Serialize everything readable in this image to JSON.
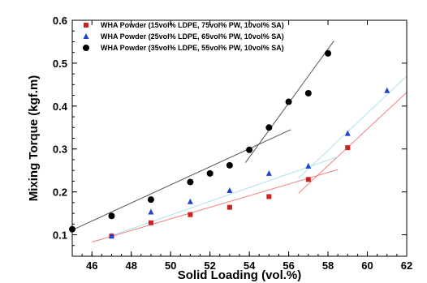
{
  "chart_data": {
    "type": "scatter",
    "title": "",
    "xlabel": "Solid Loading (vol.%)",
    "ylabel": "Mixing Torque (kgf.m)",
    "xlim": [
      45,
      62
    ],
    "ylim": [
      0.05,
      0.6
    ],
    "xticks": [
      "46",
      "48",
      "50",
      "52",
      "54",
      "56",
      "58",
      "60",
      "62"
    ],
    "yticks": [
      "0.1",
      "0.2",
      "0.3",
      "0.4",
      "0.5",
      "0.6"
    ],
    "legend_position": "top-left",
    "series": [
      {
        "name": "WHA Powder (15vol% LDPE, 75vol% PW, 10vol% SA)",
        "marker": "square",
        "color": "#cc2222",
        "line_color": "#f08080",
        "x": [
          47,
          49,
          51,
          53,
          55,
          57,
          59
        ],
        "y": [
          0.097,
          0.128,
          0.147,
          0.164,
          0.189,
          0.229,
          0.303
        ],
        "trendlines": [
          {
            "x": [
              46,
              58.5
            ],
            "y": [
              0.083,
              0.252
            ]
          },
          {
            "x": [
              56.5,
              62
            ],
            "y": [
              0.197,
              0.432
            ]
          }
        ]
      },
      {
        "name": "WHA Powder (25vol% LDPE, 65vol% PW, 10vol% SA)",
        "marker": "triangle",
        "color": "#2244cc",
        "line_color": "#b0e0f0",
        "x": [
          47,
          49,
          51,
          53,
          55,
          57,
          59,
          61
        ],
        "y": [
          0.097,
          0.153,
          0.177,
          0.203,
          0.243,
          0.26,
          0.336,
          0.436
        ],
        "trendlines": [
          {
            "x": [
              47,
              58.5
            ],
            "y": [
              0.098,
              0.282
            ]
          },
          {
            "x": [
              56.5,
              62
            ],
            "y": [
              0.232,
              0.47
            ]
          }
        ]
      },
      {
        "name": "WHA Powder (35vol% LDPE, 55vol% PW, 10vol% SA)",
        "marker": "circle",
        "color": "#000000",
        "line_color": "#555555",
        "x": [
          45,
          47,
          49,
          51,
          52,
          53,
          54,
          55,
          56,
          57,
          58
        ],
        "y": [
          0.113,
          0.144,
          0.182,
          0.223,
          0.243,
          0.262,
          0.298,
          0.35,
          0.41,
          0.43,
          0.523
        ],
        "trendlines": [
          {
            "x": [
              45,
              56.1
            ],
            "y": [
              0.111,
              0.345
            ]
          },
          {
            "x": [
              53.8,
              58.3
            ],
            "y": [
              0.268,
              0.552
            ]
          }
        ]
      }
    ]
  }
}
